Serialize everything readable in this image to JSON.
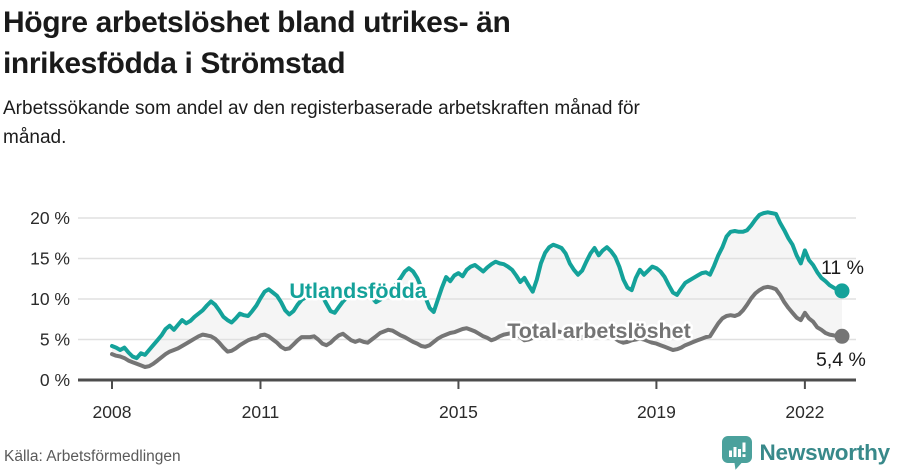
{
  "footer": {
    "source": "Källa: Arbetsförmedlingen",
    "brand": "Newsworthy",
    "logo_icon": "bar-chart-speech-bubble-icon",
    "brand_color": "#38898a",
    "logo_fill": "#4ba19c"
  },
  "chart_data": {
    "type": "line",
    "title": "Högre arbetslöshet bland utrikes- än\ninrikesfödda i Strömstad",
    "subtitle": "Arbetssökande som andel av den registerbaserade arbetskraften månad för\nmånad.",
    "xlabel": "",
    "ylabel": "",
    "unit": "%",
    "grid": true,
    "legend_position": "inline-labels",
    "x_start": "2008-01",
    "x_end": "2022-10",
    "x_tick_labels": [
      "2008",
      "2011",
      "2015",
      "2019",
      "2022"
    ],
    "x_tick_month_index": [
      0,
      36,
      84,
      132,
      168
    ],
    "y_ticks": [
      0,
      5,
      10,
      15,
      20
    ],
    "y_tick_labels": [
      "0 %",
      "5 %",
      "10 %",
      "15 %",
      "20 %"
    ],
    "ylim": [
      0,
      21.5
    ],
    "fill_between_color": "#f5f5f5",
    "axis_color": "#4d4d4d",
    "gridline_color": "#e0e0e0",
    "tick_label_color": "#2b2b2b",
    "annotation_color": "#1a1a1a",
    "series": [
      {
        "name": "Utlandsfödda",
        "color": "#14a29a",
        "end_label": "11 %",
        "end_value": 11.0,
        "values": [
          4.2,
          4.0,
          3.7,
          4.0,
          3.4,
          2.9,
          2.7,
          3.3,
          3.1,
          3.7,
          4.3,
          4.9,
          5.5,
          6.3,
          6.7,
          6.2,
          6.8,
          7.4,
          7.0,
          7.3,
          7.8,
          8.2,
          8.6,
          9.2,
          9.7,
          9.3,
          8.6,
          7.8,
          7.4,
          7.1,
          7.6,
          8.2,
          8.0,
          7.9,
          8.5,
          9.2,
          10.1,
          10.9,
          11.2,
          10.8,
          10.4,
          9.6,
          8.6,
          8.1,
          8.5,
          9.3,
          9.9,
          10.2,
          10.6,
          10.9,
          11.1,
          10.4,
          9.4,
          8.5,
          8.3,
          9.0,
          9.7,
          10.2,
          10.5,
          10.4,
          10.6,
          10.9,
          10.7,
          10.2,
          9.6,
          9.9,
          10.3,
          10.8,
          11.3,
          11.9,
          12.6,
          13.4,
          13.8,
          13.4,
          12.6,
          11.4,
          10.2,
          8.9,
          8.4,
          9.9,
          11.4,
          12.7,
          12.2,
          12.9,
          13.2,
          12.8,
          13.6,
          14.0,
          14.2,
          13.8,
          13.4,
          13.9,
          14.3,
          14.6,
          14.4,
          14.3,
          14.0,
          13.6,
          12.9,
          12.1,
          12.6,
          11.7,
          10.9,
          12.4,
          14.4,
          15.7,
          16.4,
          16.7,
          16.5,
          16.3,
          15.6,
          14.4,
          13.6,
          13.0,
          13.5,
          14.6,
          15.6,
          16.3,
          15.4,
          16.0,
          16.4,
          15.9,
          15.2,
          14.0,
          12.4,
          11.4,
          11.1,
          12.6,
          13.6,
          13.0,
          13.5,
          14.0,
          13.8,
          13.4,
          12.7,
          11.7,
          10.8,
          10.5,
          11.3,
          12.0,
          12.3,
          12.6,
          12.9,
          13.2,
          13.3,
          13.0,
          14.1,
          15.4,
          16.4,
          17.7,
          18.3,
          18.4,
          18.3,
          18.3,
          18.5,
          19.1,
          19.8,
          20.4,
          20.6,
          20.7,
          20.6,
          20.5,
          19.4,
          18.5,
          17.5,
          16.7,
          15.4,
          14.4,
          16.0,
          14.8,
          14.2,
          13.3,
          12.6,
          12.2,
          11.7,
          11.4,
          11.1,
          11.0
        ]
      },
      {
        "name": "Total arbetslöshet",
        "color": "#757575",
        "end_label": "5,4 %",
        "end_value": 5.4,
        "values": [
          3.2,
          3.0,
          2.9,
          2.7,
          2.4,
          2.2,
          2.0,
          1.8,
          1.6,
          1.7,
          2.0,
          2.4,
          2.8,
          3.2,
          3.5,
          3.7,
          3.9,
          4.2,
          4.5,
          4.8,
          5.1,
          5.4,
          5.6,
          5.5,
          5.4,
          5.1,
          4.6,
          4.0,
          3.5,
          3.6,
          3.9,
          4.3,
          4.6,
          4.9,
          5.1,
          5.2,
          5.5,
          5.6,
          5.4,
          5.0,
          4.6,
          4.1,
          3.8,
          3.9,
          4.4,
          4.9,
          5.3,
          5.3,
          5.3,
          5.4,
          5.0,
          4.5,
          4.3,
          4.6,
          5.1,
          5.5,
          5.7,
          5.3,
          4.9,
          4.7,
          4.9,
          4.7,
          4.6,
          5.0,
          5.4,
          5.8,
          6.0,
          6.2,
          6.1,
          5.8,
          5.5,
          5.3,
          5.0,
          4.7,
          4.5,
          4.2,
          4.1,
          4.3,
          4.7,
          5.1,
          5.4,
          5.6,
          5.8,
          5.9,
          6.1,
          6.3,
          6.4,
          6.2,
          6.0,
          5.7,
          5.4,
          5.2,
          4.9,
          5.1,
          5.4,
          5.6,
          5.7,
          5.8,
          5.6,
          5.3,
          4.9,
          5.0,
          5.2,
          5.5,
          5.7,
          5.9,
          6.0,
          6.0,
          6.0,
          5.9,
          5.7,
          5.5,
          5.3,
          5.1,
          5.3,
          5.5,
          5.7,
          5.8,
          5.9,
          5.8,
          5.6,
          5.4,
          5.1,
          4.8,
          4.6,
          4.7,
          4.9,
          5.0,
          5.1,
          5.0,
          4.8,
          4.6,
          4.5,
          4.3,
          4.1,
          3.9,
          3.7,
          3.8,
          4.0,
          4.3,
          4.5,
          4.7,
          4.9,
          5.1,
          5.3,
          5.4,
          6.2,
          7.0,
          7.6,
          7.9,
          8.0,
          7.9,
          8.1,
          8.6,
          9.3,
          10.1,
          10.7,
          11.1,
          11.4,
          11.5,
          11.4,
          11.2,
          10.5,
          9.6,
          8.9,
          8.3,
          7.7,
          7.4,
          8.3,
          7.6,
          7.2,
          6.5,
          6.2,
          5.8,
          5.6,
          5.5,
          5.4,
          5.4
        ]
      }
    ]
  }
}
